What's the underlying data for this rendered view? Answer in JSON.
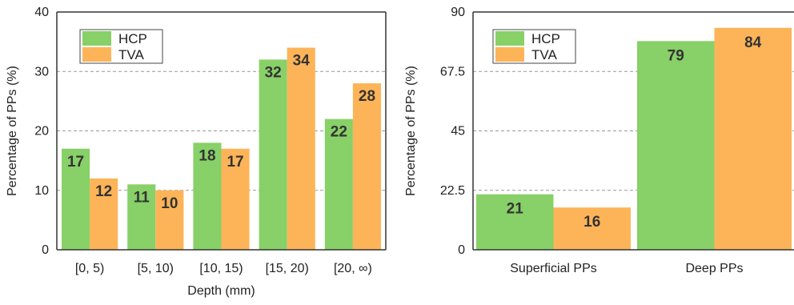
{
  "colors": {
    "HCP": "#88d068",
    "TVA": "#fdb458",
    "grid": "#999999",
    "axis": "#333333"
  },
  "chart_data": [
    {
      "type": "bar",
      "categories": [
        "[0, 5)",
        "[5, 10)",
        "[10, 15)",
        "[15, 20)",
        "[20, ∞)"
      ],
      "series": [
        {
          "name": "HCP",
          "values": [
            17,
            11,
            18,
            32,
            22
          ],
          "labels": [
            "17",
            "11",
            "18",
            "32",
            "22"
          ]
        },
        {
          "name": "TVA",
          "values": [
            12,
            10,
            17,
            34,
            28
          ],
          "labels": [
            "12",
            "10",
            "17",
            "34",
            "28"
          ]
        }
      ],
      "xlabel": "Depth (mm)",
      "ylabel": "Percentage of PPs (%)",
      "ylim": [
        0,
        40
      ],
      "yticks": [
        "0",
        "10",
        "20",
        "30",
        "40"
      ],
      "grid": "horizontal dashed",
      "legend_placement": "top-left"
    },
    {
      "type": "bar",
      "categories": [
        "Superficial PPs",
        "Deep PPs"
      ],
      "series": [
        {
          "name": "HCP",
          "values": [
            21,
            79
          ],
          "labels": [
            "21",
            "79"
          ]
        },
        {
          "name": "TVA",
          "values": [
            16,
            84
          ],
          "labels": [
            "16",
            "84"
          ]
        }
      ],
      "xlabel": "",
      "ylabel": "Percentage of PPs (%)",
      "ylim": [
        0,
        90
      ],
      "yticks": [
        "0",
        "22.5",
        "45",
        "67.5",
        "90"
      ],
      "grid": "horizontal dashed",
      "legend_placement": "top-left"
    }
  ]
}
